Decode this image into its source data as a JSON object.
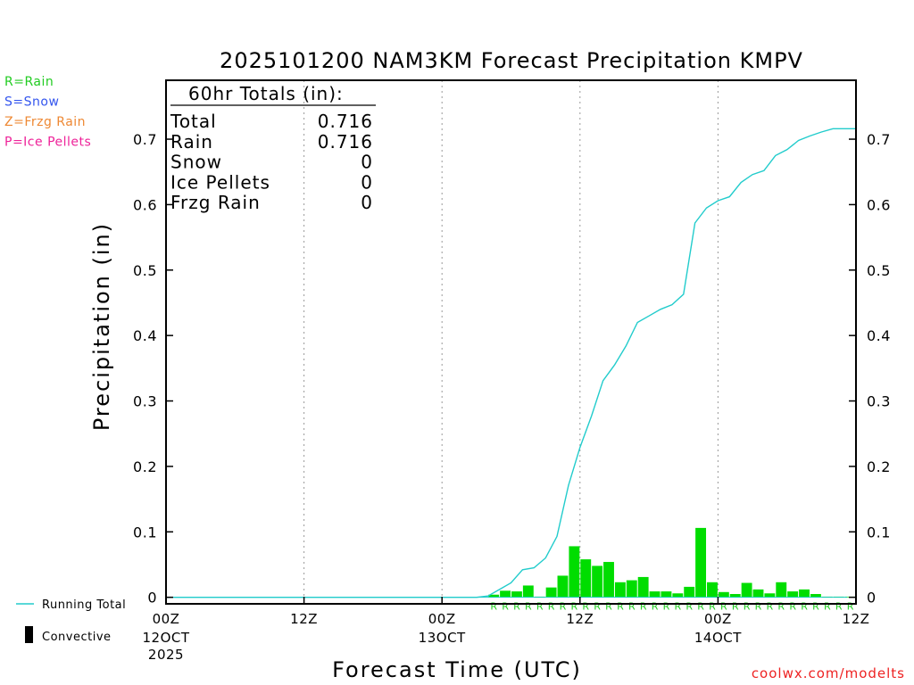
{
  "chart_data": {
    "type": "bar",
    "title": "2025101200 NAM3KM Forecast Precipitation KMPV",
    "xlabel": "Forecast Time (UTC)",
    "ylabel": "Precipitation (in)",
    "ylim": [
      -0.01,
      0.79
    ],
    "xlim": [
      0,
      60
    ],
    "yticks": [
      0,
      0.1,
      0.2,
      0.3,
      0.4,
      0.5,
      0.6,
      0.7
    ],
    "ytick_labels": [
      "0",
      "0.1",
      "0.2",
      "0.3",
      "0.4",
      "0.5",
      "0.6",
      "0.7"
    ],
    "xticks": [
      {
        "hour": 0,
        "label": "00Z",
        "sub": "12OCT",
        "sub2": "2025"
      },
      {
        "hour": 12,
        "label": "12Z",
        "sub": "",
        "sub2": ""
      },
      {
        "hour": 24,
        "label": "00Z",
        "sub": "13OCT",
        "sub2": ""
      },
      {
        "hour": 36,
        "label": "12Z",
        "sub": "",
        "sub2": ""
      },
      {
        "hour": 48,
        "label": "00Z",
        "sub": "14OCT",
        "sub2": ""
      },
      {
        "hour": 60,
        "label": "12Z",
        "sub": "",
        "sub2": ""
      }
    ],
    "gridlines_hours": [
      12,
      24,
      36,
      48
    ],
    "totals": {
      "header": "60hr Totals (in):",
      "rows": [
        {
          "label": "Total",
          "value": "0.716"
        },
        {
          "label": "Rain",
          "value": "0.716"
        },
        {
          "label": "Snow",
          "value": "0"
        },
        {
          "label": "Ice Pellets",
          "value": "0"
        },
        {
          "label": "Frzg Rain",
          "value": "0"
        }
      ]
    },
    "legend": [
      {
        "text": "R=Rain",
        "color": "#22cc22"
      },
      {
        "text": "S=Snow",
        "color": "#3355ee"
      },
      {
        "text": "Z=Frzg Rain",
        "color": "#ee8833"
      },
      {
        "text": "P=Ice Pellets",
        "color": "#ee2299"
      }
    ],
    "bottom_legend": {
      "running_total": "Running Total",
      "convective": "Convective"
    },
    "series": [
      {
        "name": "Hourly Rain",
        "color": "#00dd00",
        "hours": [
          28,
          29,
          30,
          31,
          32,
          33,
          34,
          35,
          36,
          37,
          38,
          39,
          40,
          41,
          42,
          43,
          44,
          45,
          46,
          47,
          48,
          49,
          50,
          51,
          52,
          53,
          54,
          55,
          56,
          57,
          58,
          59
        ],
        "values": [
          0.004,
          0.01,
          0.009,
          0.018,
          0.001,
          0.015,
          0.033,
          0.078,
          0.058,
          0.048,
          0.054,
          0.023,
          0.026,
          0.031,
          0.009,
          0.009,
          0.006,
          0.016,
          0.106,
          0.023,
          0.008,
          0.005,
          0.022,
          0.012,
          0.006,
          0.023,
          0.009,
          0.012,
          0.005,
          0.001,
          0.001,
          0.001
        ],
        "ptype": "R"
      },
      {
        "name": "Running Total",
        "color": "#22cccc",
        "hours": [
          0,
          27,
          28,
          29,
          30,
          31,
          32,
          33,
          34,
          35,
          36,
          37,
          38,
          39,
          40,
          41,
          42,
          43,
          44,
          45,
          46,
          47,
          48,
          49,
          50,
          51,
          52,
          53,
          54,
          55,
          56,
          57,
          58,
          59,
          60
        ],
        "values": [
          0,
          0,
          0.002,
          0.012,
          0.022,
          0.042,
          0.045,
          0.06,
          0.093,
          0.171,
          0.229,
          0.277,
          0.331,
          0.355,
          0.384,
          0.42,
          0.43,
          0.44,
          0.447,
          0.463,
          0.572,
          0.595,
          0.606,
          0.612,
          0.634,
          0.646,
          0.652,
          0.675,
          0.684,
          0.698,
          0.705,
          0.711,
          0.716,
          0.716,
          0.716
        ]
      }
    ]
  },
  "footer": {
    "credit": "coolwx.com/modelts"
  }
}
